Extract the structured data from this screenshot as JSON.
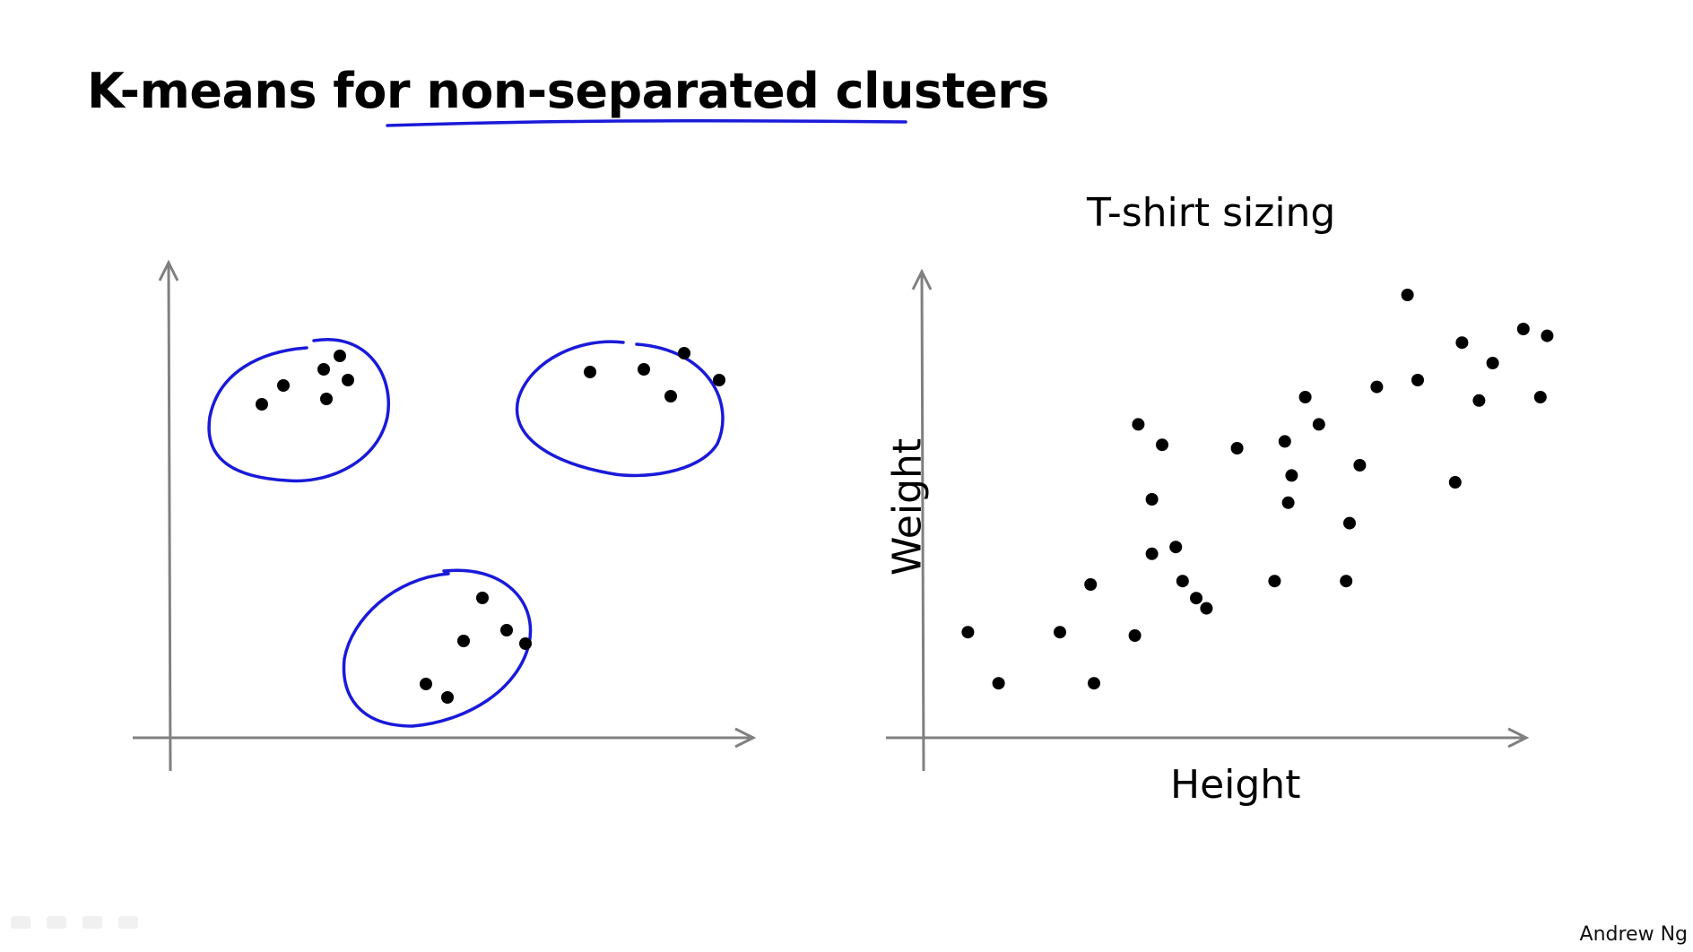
{
  "slide": {
    "title_plain": "K-means for ",
    "title_emphasis": "non-separated clusters",
    "credit": "Andrew Ng"
  },
  "colors": {
    "ink": "#000000",
    "axis": "#808080",
    "annotation": "#1a1ad9"
  },
  "chart_data": [
    {
      "type": "scatter",
      "title": "",
      "xlabel": "",
      "ylabel": "",
      "grid": false,
      "annotations": [
        "hand-drawn ellipse around each of 3 clusters"
      ],
      "x": [
        3.4,
        4.2,
        5.7,
        6.6,
        5.8,
        6.3,
        15.6,
        17.6,
        19.1,
        18.6,
        20.4,
        9.5,
        10.9,
        11.6,
        12.5,
        13.2,
        10.3
      ],
      "y": [
        12.4,
        13.1,
        13.7,
        13.3,
        12.6,
        14.2,
        13.6,
        13.7,
        14.3,
        12.7,
        13.3,
        2.0,
        3.6,
        5.2,
        4.0,
        3.5,
        1.5
      ]
    },
    {
      "type": "scatter",
      "title": "T-shirt sizing",
      "xlabel": "Height",
      "ylabel": "Weight",
      "grid": false,
      "x": [
        1.3,
        2.2,
        4.0,
        4.9,
        5.0,
        6.2,
        6.7,
        6.7,
        6.3,
        7.0,
        7.6,
        7.4,
        8.0,
        8.3,
        9.2,
        10.3,
        10.6,
        10.7,
        10.8,
        11.2,
        11.6,
        12.4,
        12.5,
        12.8,
        13.3,
        14.2,
        14.5,
        15.6,
        16.3,
        15.8,
        16.7,
        17.6,
        18.1,
        18.3
      ],
      "y": [
        3.1,
        1.6,
        3.1,
        4.5,
        1.6,
        3.0,
        5.4,
        7.0,
        9.2,
        8.6,
        4.6,
        5.6,
        4.1,
        3.8,
        8.5,
        4.6,
        8.7,
        6.9,
        7.7,
        10.0,
        9.2,
        4.6,
        6.3,
        8.0,
        10.3,
        13.0,
        10.5,
        7.5,
        9.9,
        11.6,
        11.0,
        12.0,
        10.0,
        11.8
      ]
    }
  ]
}
